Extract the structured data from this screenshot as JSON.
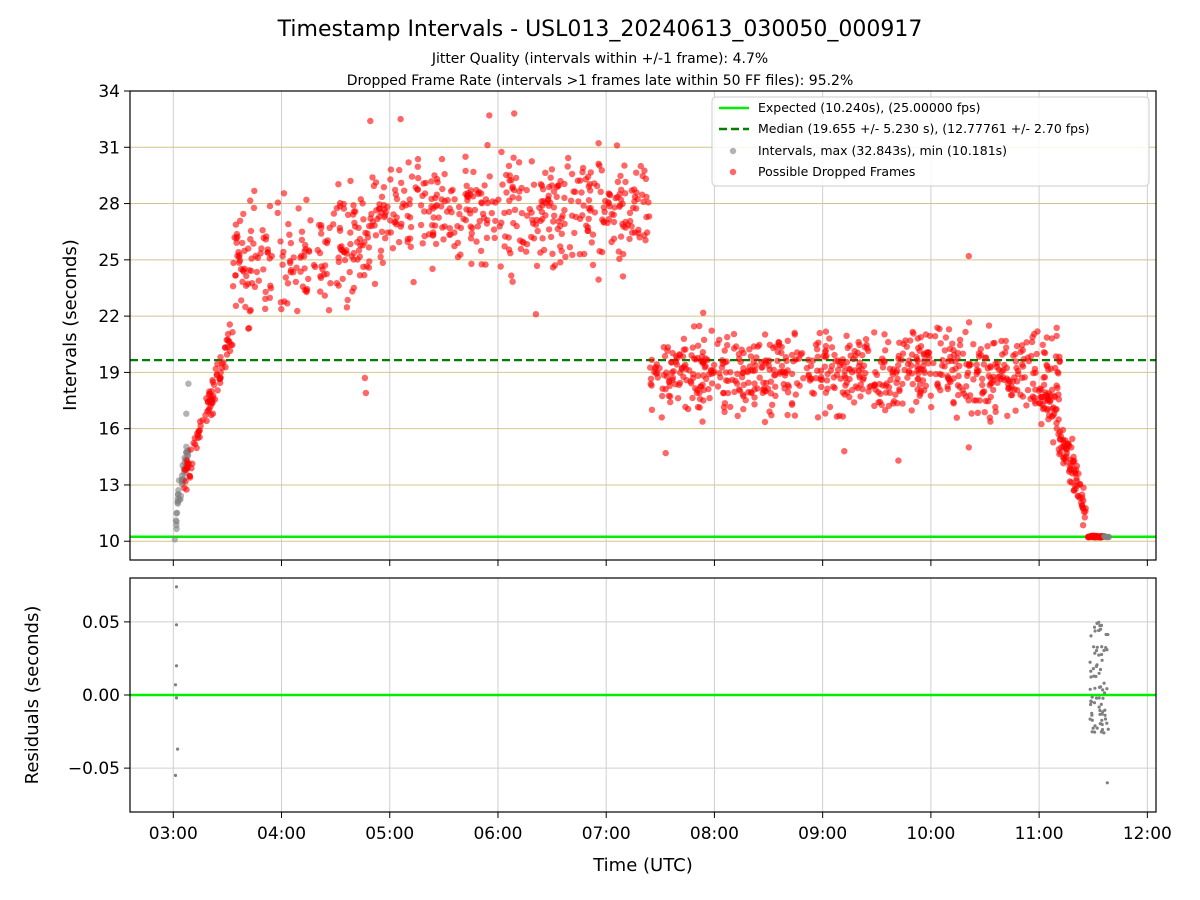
{
  "chart_data": {
    "type": "scatter",
    "title": "Timestamp Intervals - USL013_20240613_030050_000917",
    "subtitle_lines": [
      "Jitter Quality (intervals within +/-1 frame): 4.7%",
      "Dropped Frame Rate (intervals >1 frames late within 50 FF files): 95.2%"
    ],
    "xlabel": "Time (UTC)",
    "x_range": [
      2.6,
      12.08
    ],
    "x_ticks": [
      "03:00",
      "04:00",
      "05:00",
      "06:00",
      "07:00",
      "08:00",
      "09:00",
      "10:00",
      "11:00",
      "12:00"
    ],
    "x_tick_values": [
      3,
      4,
      5,
      6,
      7,
      8,
      9,
      10,
      11,
      12
    ],
    "top_panel": {
      "ylabel": "Intervals (seconds)",
      "ylim": [
        9.0,
        34.0
      ],
      "y_ticks": [
        10,
        13,
        16,
        19,
        22,
        25,
        28,
        31,
        34
      ],
      "y_tick_labels": [
        "10",
        "13",
        "16",
        "19",
        "22",
        "25",
        "28",
        "31",
        "34"
      ],
      "grid": true,
      "expected": 10.24,
      "median": 19.655,
      "legend_position": "top-right",
      "legend": [
        "Expected (10.240s), (25.00000 fps)",
        "Median (19.655 +/- 5.230 s), (12.77761 +/- 2.70 fps)",
        "Intervals, max (32.843s), min (10.181s)",
        "Possible Dropped Frames"
      ],
      "segments": [
        {
          "series": "gray",
          "x_start": 3.01,
          "x_end": 3.14,
          "n": 45,
          "kind": "rise",
          "y_start": 10.2,
          "y_end": 15.2,
          "spread": 1.6
        },
        {
          "series": "red",
          "x_start": 3.1,
          "x_end": 3.55,
          "n": 90,
          "kind": "rise",
          "y_start": 13.0,
          "y_end": 21.0,
          "spread": 1.4
        },
        {
          "series": "red",
          "x_start": 3.55,
          "x_end": 4.8,
          "n": 200,
          "kind": "flat",
          "y_start": 24.6,
          "y_end": 25.5,
          "spread": 4.6
        },
        {
          "series": "red",
          "x_start": 4.8,
          "x_end": 7.4,
          "n": 420,
          "kind": "flat",
          "y_start": 27.0,
          "y_end": 27.8,
          "spread": 4.5
        },
        {
          "series": "red",
          "x_start": 7.4,
          "x_end": 11.2,
          "n": 700,
          "kind": "flat",
          "y_start": 19.0,
          "y_end": 19.0,
          "spread": 3.4
        },
        {
          "series": "red",
          "x_start": 11.0,
          "x_end": 11.45,
          "n": 110,
          "kind": "fall",
          "y_start": 17.5,
          "y_end": 11.0,
          "spread": 1.8
        },
        {
          "series": "red",
          "x_start": 11.45,
          "x_end": 11.6,
          "n": 40,
          "kind": "flat",
          "y_start": 10.24,
          "y_end": 10.24,
          "spread": 0.08
        },
        {
          "series": "gray",
          "x_start": 11.6,
          "x_end": 11.65,
          "n": 8,
          "kind": "flat",
          "y_start": 10.24,
          "y_end": 10.24,
          "spread": 0.05
        }
      ],
      "outliers": [
        {
          "series": "gray",
          "x": 3.14,
          "y": 18.4
        },
        {
          "series": "gray",
          "x": 3.12,
          "y": 16.8
        },
        {
          "series": "red",
          "x": 4.77,
          "y": 18.7
        },
        {
          "series": "red",
          "x": 4.78,
          "y": 17.9
        },
        {
          "series": "red",
          "x": 4.82,
          "y": 32.4
        },
        {
          "series": "red",
          "x": 5.1,
          "y": 32.5
        },
        {
          "series": "red",
          "x": 5.92,
          "y": 32.7
        },
        {
          "series": "red",
          "x": 6.15,
          "y": 32.8
        },
        {
          "series": "red",
          "x": 6.35,
          "y": 22.1
        },
        {
          "series": "red",
          "x": 7.1,
          "y": 31.1
        },
        {
          "series": "red",
          "x": 10.35,
          "y": 25.2
        },
        {
          "series": "red",
          "x": 9.2,
          "y": 14.8
        },
        {
          "series": "red",
          "x": 9.7,
          "y": 14.3
        },
        {
          "series": "red",
          "x": 10.35,
          "y": 15.0
        },
        {
          "series": "red",
          "x": 7.55,
          "y": 14.7
        }
      ]
    },
    "bottom_panel": {
      "ylabel": "Residuals (seconds)",
      "ylim": [
        -0.08,
        0.08
      ],
      "y_ticks": [
        -0.05,
        0.0,
        0.05
      ],
      "y_tick_labels": [
        "−0.05",
        "0.00",
        "0.05"
      ],
      "zero_line": 0.0,
      "points": [
        {
          "x": 3.03,
          "y": 0.074
        },
        {
          "x": 3.03,
          "y": 0.048
        },
        {
          "x": 3.03,
          "y": 0.02
        },
        {
          "x": 3.02,
          "y": 0.007
        },
        {
          "x": 3.03,
          "y": -0.002
        },
        {
          "x": 3.04,
          "y": -0.037
        },
        {
          "x": 3.02,
          "y": -0.055
        },
        {
          "x": 11.63,
          "y": -0.06
        }
      ],
      "cluster": {
        "x_start": 11.46,
        "x_end": 11.64,
        "n": 75,
        "y_min": -0.026,
        "y_max": 0.05
      }
    },
    "colors": {
      "expected": "#00ee00",
      "median": "#008000",
      "gray_points": "#808080",
      "red_points": "#ff0000",
      "y_grid": "#d4c48a",
      "x_grid": "#cfcfcf"
    }
  }
}
